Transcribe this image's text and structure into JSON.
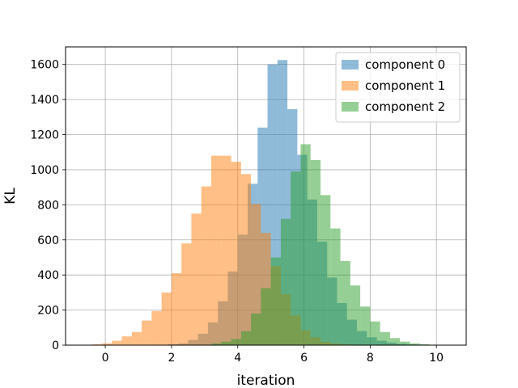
{
  "chart_data": {
    "type": "bar",
    "subtype": "overlaid-histogram",
    "xlabel": "iteration",
    "ylabel": "KL",
    "xlim": [
      -1.2,
      10.9
    ],
    "ylim": [
      0,
      1700
    ],
    "x_ticks": [
      "0",
      "2",
      "4",
      "6",
      "8",
      "10"
    ],
    "y_ticks": [
      "0",
      "200",
      "400",
      "600",
      "800",
      "1000",
      "1200",
      "1400",
      "1600"
    ],
    "grid": true,
    "legend_position": "top-right",
    "alpha": 0.5,
    "series": [
      {
        "name": "component 0",
        "color": "#1f77b4",
        "bin_start": 1.9,
        "bin_width": 0.3,
        "values": [
          5,
          10,
          30,
          65,
          130,
          250,
          420,
          630,
          920,
          1240,
          1600,
          1625,
          1345,
          1085,
          830,
          590,
          385,
          240,
          145,
          80,
          45,
          25,
          15,
          8,
          4,
          3,
          2,
          1,
          1,
          1
        ]
      },
      {
        "name": "component 1",
        "color": "#ff7f0e",
        "bin_start": -0.4,
        "bin_width": 0.3,
        "values": [
          5,
          10,
          25,
          50,
          75,
          140,
          195,
          300,
          410,
          580,
          750,
          905,
          1080,
          1080,
          1045,
          975,
          805,
          640,
          450,
          290,
          170,
          85,
          45,
          20,
          10,
          5,
          2,
          1,
          1
        ]
      },
      {
        "name": "component 2",
        "color": "#2ca02c",
        "bin_start": 3.2,
        "bin_width": 0.3,
        "values": [
          10,
          20,
          35,
          80,
          180,
          325,
          500,
          720,
          990,
          1145,
          1055,
          855,
          665,
          480,
          340,
          220,
          135,
          75,
          40,
          20,
          10,
          5,
          2,
          1
        ]
      }
    ]
  }
}
